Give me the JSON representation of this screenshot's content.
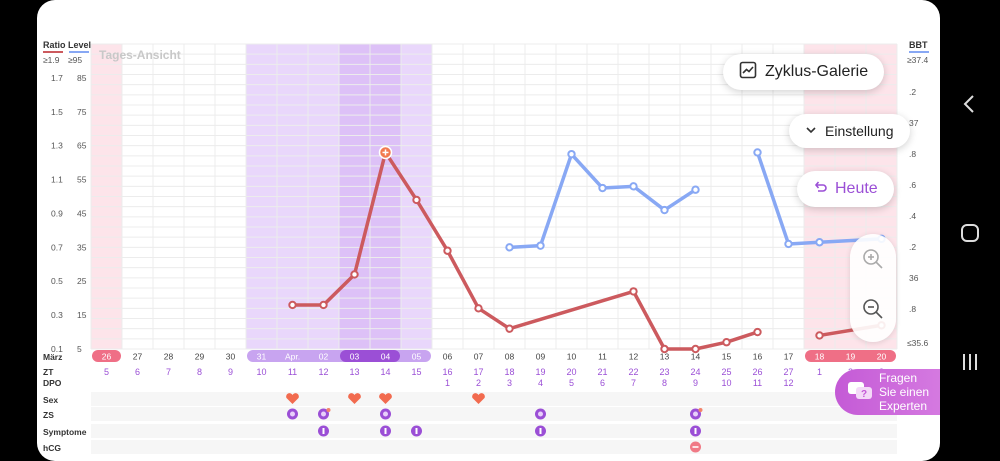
{
  "header": {
    "left_label": "Ratio Level",
    "ratio_max": "≥1.9",
    "level_max": "≥95",
    "right_label": "BBT",
    "bbt_max": "≥37.4",
    "bbt_min": "≤35.6",
    "view_label": "Tages-Ansicht"
  },
  "left_axis": [
    {
      "ratio": "1.7",
      "level": "85"
    },
    {
      "ratio": "1.5",
      "level": "75"
    },
    {
      "ratio": "1.3",
      "level": "65"
    },
    {
      "ratio": "1.1",
      "level": "55"
    },
    {
      "ratio": "0.9",
      "level": "45"
    },
    {
      "ratio": "0.7",
      "level": "35"
    },
    {
      "ratio": "0.5",
      "level": "25"
    },
    {
      "ratio": "0.3",
      "level": "15"
    },
    {
      "ratio": "0.1",
      "level": "5"
    }
  ],
  "right_axis": [
    ".2",
    "37",
    ".8",
    ".6",
    ".4",
    ".2",
    "36",
    ".8"
  ],
  "row_labels": {
    "month": "März",
    "zt": "ZT",
    "dpo": "DPO",
    "sex": "Sex",
    "zs": "ZS",
    "symptome": "Symptome",
    "hcg": "hCG"
  },
  "dates": [
    "26",
    "27",
    "28",
    "29",
    "30",
    "31",
    "Apr.",
    "02",
    "03",
    "04",
    "05",
    "06",
    "07",
    "08",
    "09",
    "10",
    "11",
    "12",
    "13",
    "14",
    "15",
    "16",
    "17",
    "18",
    "19",
    "20"
  ],
  "zt": [
    "5",
    "6",
    "7",
    "8",
    "9",
    "10",
    "11",
    "12",
    "13",
    "14",
    "15",
    "16",
    "17",
    "18",
    "19",
    "20",
    "21",
    "22",
    "23",
    "24",
    "25",
    "26",
    "27",
    "1",
    "2",
    "3"
  ],
  "dpo": [
    "",
    "",
    "",
    "",
    "",
    "",
    "",
    "",
    "",
    "",
    "",
    "1",
    "2",
    "3",
    "4",
    "5",
    "6",
    "7",
    "8",
    "9",
    "10",
    "11",
    "12",
    "",
    "",
    ""
  ],
  "buttons": {
    "galerie": "Zyklus-Galerie",
    "einstellung": "Einstellung",
    "heute": "Heute"
  },
  "expert": {
    "line1": "Fragen",
    "line2": "Sie einen",
    "line3": "Experten"
  },
  "colors": {
    "lh": "#cc5a5e",
    "bbt": "#88a8f4",
    "fertile": "#e9d7fb",
    "ovulation": "#ddc1f7",
    "period": "#fde4ea",
    "accent": "#9b4fd6"
  },
  "chart_data": {
    "type": "line",
    "x": [
      "26",
      "27",
      "28",
      "29",
      "30",
      "31",
      "Apr.",
      "02",
      "03",
      "04",
      "05",
      "06",
      "07",
      "08",
      "09",
      "10",
      "11",
      "12",
      "13",
      "14",
      "15",
      "16",
      "17",
      "18",
      "19",
      "20"
    ],
    "series": [
      {
        "key": "lh",
        "unit": "Level",
        "values": [
          null,
          null,
          null,
          null,
          null,
          null,
          18,
          18,
          27,
          63,
          49,
          34,
          17,
          11,
          null,
          null,
          null,
          22,
          5,
          5,
          7,
          10,
          null,
          9,
          null,
          12
        ]
      },
      {
        "key": "bbt",
        "unit": "°C",
        "values": [
          null,
          null,
          null,
          null,
          null,
          null,
          null,
          null,
          null,
          null,
          null,
          null,
          null,
          36.2,
          36.21,
          36.75,
          36.55,
          36.56,
          36.42,
          36.54,
          null,
          36.76,
          36.22,
          36.23,
          null,
          36.25
        ]
      }
    ],
    "y_left": {
      "title": "Ratio Level",
      "ylim": [
        5,
        95
      ]
    },
    "y_right": {
      "title": "BBT",
      "ylim": [
        35.6,
        37.4
      ]
    },
    "bands": {
      "period": [
        "26",
        "18-20"
      ],
      "fertile": [
        "31-05"
      ],
      "ovulation": [
        "03-04"
      ]
    },
    "markers": {
      "sex": [
        "Apr.",
        "03",
        "04",
        "07"
      ],
      "zs": [
        "Apr.",
        "02",
        "04",
        "09",
        "14"
      ],
      "symptome": [
        "02",
        "04",
        "05",
        "09",
        "14"
      ],
      "hcg": [
        "14"
      ]
    }
  }
}
